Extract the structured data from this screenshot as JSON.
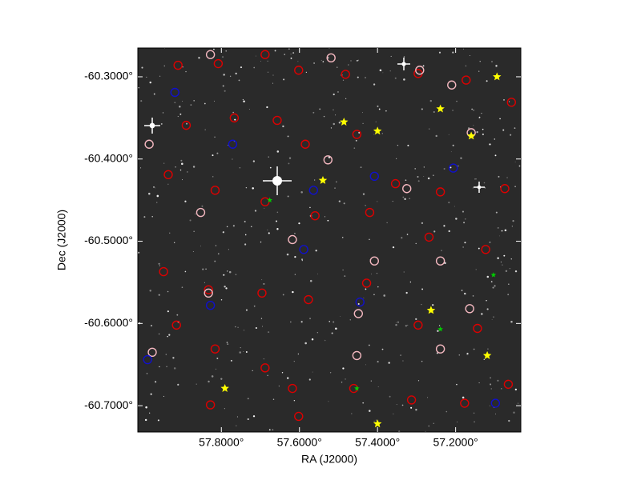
{
  "chart_data": {
    "type": "scatter",
    "xlabel": "RA (J2000)",
    "ylabel": "Dec (J2000)",
    "xlim": [
      58.014,
      57.033
    ],
    "ylim": [
      -60.732,
      -60.265
    ],
    "xticks": [
      {
        "value": 57.8,
        "label": "57.8000°"
      },
      {
        "value": 57.6,
        "label": "57.6000°"
      },
      {
        "value": 57.4,
        "label": "57.4000°"
      },
      {
        "value": 57.2,
        "label": "57.2000°"
      }
    ],
    "yticks": [
      {
        "value": -60.3,
        "label": "-60.3000°"
      },
      {
        "value": -60.4,
        "label": "-60.4000°"
      },
      {
        "value": -60.5,
        "label": "-60.5000°"
      },
      {
        "value": -60.6,
        "label": "-60.6000°"
      },
      {
        "value": -60.7,
        "label": "-60.7000°"
      }
    ],
    "background": "#2a2a2a",
    "series": [
      {
        "color": "#dd0000",
        "marker": "circle",
        "x": [
          57.911,
          57.808,
          57.688,
          57.602,
          57.482,
          57.296,
          57.173,
          57.057,
          57.89,
          57.767,
          57.657,
          57.585,
          57.453,
          57.354,
          57.239,
          57.074,
          57.936,
          57.816,
          57.688,
          57.56,
          57.42,
          57.268,
          57.123,
          57.948,
          57.833,
          57.696,
          57.577,
          57.428,
          57.296,
          57.144,
          57.915,
          57.816,
          57.688,
          57.618,
          57.461,
          57.313,
          57.177,
          57.065,
          57.828,
          57.602
        ],
        "y": [
          -60.286,
          -60.284,
          -60.273,
          -60.292,
          -60.297,
          -60.296,
          -60.304,
          -60.331,
          -60.359,
          -60.35,
          -60.353,
          -60.382,
          -60.37,
          -60.43,
          -60.44,
          -60.436,
          -60.419,
          -60.438,
          -60.452,
          -60.469,
          -60.465,
          -60.495,
          -60.51,
          -60.537,
          -60.559,
          -60.563,
          -60.571,
          -60.551,
          -60.602,
          -60.606,
          -60.602,
          -60.631,
          -60.654,
          -60.679,
          -60.679,
          -60.693,
          -60.697,
          -60.674,
          -60.699,
          -60.713
        ]
      },
      {
        "color": "#f4b8c0",
        "marker": "circle",
        "x": [
          57.828,
          57.519,
          57.292,
          57.21,
          57.985,
          57.527,
          57.325,
          57.16,
          57.853,
          57.618,
          57.408,
          57.239,
          57.833,
          57.449,
          57.164,
          57.977,
          57.453,
          57.239
        ],
        "y": [
          -60.273,
          -60.277,
          -60.292,
          -60.31,
          -60.382,
          -60.401,
          -60.436,
          -60.368,
          -60.465,
          -60.498,
          -60.524,
          -60.524,
          -60.563,
          -60.588,
          -60.582,
          -60.635,
          -60.639,
          -60.631
        ]
      },
      {
        "color": "#1010cc",
        "marker": "circle",
        "x": [
          57.919,
          57.771,
          57.564,
          57.408,
          57.206,
          57.589,
          57.445,
          57.828,
          57.989,
          57.098
        ],
        "y": [
          -60.319,
          -60.382,
          -60.438,
          -60.421,
          -60.411,
          -60.51,
          -60.574,
          -60.578,
          -60.644,
          -60.697
        ]
      },
      {
        "color": "#ffff00",
        "marker": "star",
        "x": [
          57.094,
          57.239,
          57.486,
          57.4,
          57.16,
          57.54,
          57.263,
          57.119,
          57.791,
          57.4
        ],
        "y": [
          -60.3,
          -60.339,
          -60.355,
          -60.366,
          -60.372,
          -60.426,
          -60.584,
          -60.639,
          -60.679,
          -60.722
        ]
      },
      {
        "color": "#00cc00",
        "marker": "small-star",
        "x": [
          57.676,
          57.239,
          57.103,
          57.453
        ],
        "y": [
          -60.45,
          -60.607,
          -60.541,
          -60.679
        ]
      }
    ]
  }
}
